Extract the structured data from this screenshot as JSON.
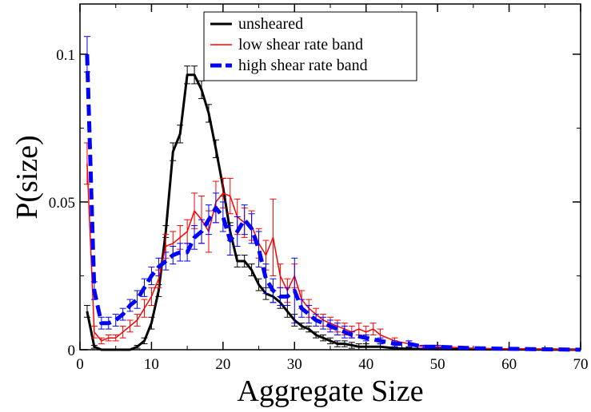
{
  "chart_data": {
    "type": "line",
    "title": "",
    "xlabel": "Aggregate Size",
    "ylabel": "P(size)",
    "xlim": [
      0,
      70
    ],
    "ylim": [
      0,
      0.117
    ],
    "x_ticks": [
      0,
      10,
      20,
      30,
      40,
      50,
      60,
      70
    ],
    "x_tick_labels": [
      "0",
      "10",
      "20",
      "30",
      "40",
      "50",
      "60",
      "70"
    ],
    "y_ticks": [
      0,
      0.05,
      0.1
    ],
    "y_tick_labels": [
      "0",
      "0.05",
      "0.1"
    ],
    "grid": false,
    "legend_position": "top-center",
    "series": [
      {
        "name": "unsheared",
        "color": "#000000",
        "style": "solid",
        "points": [
          [
            1,
            0.013
          ],
          [
            2,
            0.001
          ],
          [
            3,
            0
          ],
          [
            4,
            0
          ],
          [
            5,
            0
          ],
          [
            6,
            0
          ],
          [
            7,
            0
          ],
          [
            8,
            0.001
          ],
          [
            9,
            0.003
          ],
          [
            10,
            0.009
          ],
          [
            11,
            0.02
          ],
          [
            12,
            0.04
          ],
          [
            13,
            0.067
          ],
          [
            14,
            0.073
          ],
          [
            15,
            0.093
          ],
          [
            16,
            0.093
          ],
          [
            17,
            0.088
          ],
          [
            18,
            0.08
          ],
          [
            19,
            0.068
          ],
          [
            20,
            0.055
          ],
          [
            21,
            0.04
          ],
          [
            22,
            0.03
          ],
          [
            23,
            0.03
          ],
          [
            24,
            0.027
          ],
          [
            25,
            0.022
          ],
          [
            26,
            0.019
          ],
          [
            27,
            0.018
          ],
          [
            28,
            0.016
          ],
          [
            29,
            0.013
          ],
          [
            30,
            0.01
          ],
          [
            31,
            0.008
          ],
          [
            32,
            0.007
          ],
          [
            33,
            0.005
          ],
          [
            34,
            0.004
          ],
          [
            35,
            0.003
          ],
          [
            36,
            0.002
          ],
          [
            37,
            0.002
          ],
          [
            38,
            0.0015
          ],
          [
            39,
            0.001
          ],
          [
            40,
            0.001
          ],
          [
            42,
            0.001
          ],
          [
            44,
            0.0005
          ],
          [
            46,
            0.0003
          ],
          [
            50,
            0.0002
          ],
          [
            55,
            0.0001
          ],
          [
            60,
            0.0001
          ],
          [
            70,
            0
          ]
        ],
        "errors": [
          0.002,
          0.0005,
          0,
          0,
          0,
          0,
          0,
          0.0005,
          0.001,
          0.002,
          0.002,
          0.002,
          0.003,
          0.003,
          0.003,
          0.003,
          0.003,
          0.003,
          0.003,
          0.003,
          0.003,
          0.002,
          0.002,
          0.002,
          0.002,
          0.002,
          0.002,
          0.002,
          0.002,
          0.002,
          0.001,
          0.001,
          0.001,
          0.001,
          0.001,
          0.001,
          0.001,
          0.001,
          0.001,
          0.001,
          0.001,
          0.0005,
          0.0005,
          0.0005,
          0,
          0,
          0
        ]
      },
      {
        "name": "low shear rate band",
        "color": "#ff0000",
        "style": "solid",
        "points": [
          [
            1,
            0.063
          ],
          [
            2,
            0.006
          ],
          [
            3,
            0.003
          ],
          [
            4,
            0.004
          ],
          [
            5,
            0.004
          ],
          [
            6,
            0.006
          ],
          [
            7,
            0.008
          ],
          [
            8,
            0.01
          ],
          [
            9,
            0.014
          ],
          [
            10,
            0.018
          ],
          [
            11,
            0.024
          ],
          [
            12,
            0.035
          ],
          [
            13,
            0.036
          ],
          [
            14,
            0.038
          ],
          [
            15,
            0.04
          ],
          [
            16,
            0.047
          ],
          [
            17,
            0.044
          ],
          [
            18,
            0.04
          ],
          [
            19,
            0.05
          ],
          [
            20,
            0.053
          ],
          [
            21,
            0.052
          ],
          [
            22,
            0.045
          ],
          [
            23,
            0.043
          ],
          [
            24,
            0.042
          ],
          [
            25,
            0.036
          ],
          [
            26,
            0.032
          ],
          [
            27,
            0.038
          ],
          [
            28,
            0.025
          ],
          [
            29,
            0.02
          ],
          [
            30,
            0.025
          ],
          [
            31,
            0.017
          ],
          [
            32,
            0.014
          ],
          [
            33,
            0.012
          ],
          [
            34,
            0.01
          ],
          [
            35,
            0.009
          ],
          [
            36,
            0.008
          ],
          [
            37,
            0.007
          ],
          [
            38,
            0.006
          ],
          [
            39,
            0.007
          ],
          [
            40,
            0.006
          ],
          [
            41,
            0.007
          ],
          [
            42,
            0.005
          ],
          [
            44,
            0.003
          ],
          [
            46,
            0.002
          ],
          [
            48,
            0.001
          ],
          [
            50,
            0.001
          ],
          [
            55,
            0.0005
          ],
          [
            60,
            0.0003
          ],
          [
            70,
            0
          ]
        ],
        "errors": [
          0.007,
          0.002,
          0.001,
          0.001,
          0.001,
          0.002,
          0.002,
          0.002,
          0.003,
          0.003,
          0.003,
          0.004,
          0.004,
          0.004,
          0.004,
          0.006,
          0.008,
          0.007,
          0.007,
          0.005,
          0.006,
          0.006,
          0.005,
          0.005,
          0.005,
          0.005,
          0.013,
          0.004,
          0.004,
          0.004,
          0.003,
          0.003,
          0.002,
          0.002,
          0.002,
          0.002,
          0.002,
          0.002,
          0.002,
          0.002,
          0.002,
          0.002,
          0.001,
          0.001,
          0.0005,
          0.0005,
          0,
          0,
          0
        ]
      },
      {
        "name": "high shear rate band",
        "color": "#0000ff",
        "style": "dashed",
        "points": [
          [
            1,
            0.1
          ],
          [
            2,
            0.02
          ],
          [
            3,
            0.009
          ],
          [
            4,
            0.009
          ],
          [
            5,
            0.01
          ],
          [
            6,
            0.012
          ],
          [
            7,
            0.015
          ],
          [
            8,
            0.017
          ],
          [
            9,
            0.021
          ],
          [
            10,
            0.025
          ],
          [
            11,
            0.028
          ],
          [
            12,
            0.03
          ],
          [
            13,
            0.032
          ],
          [
            14,
            0.033
          ],
          [
            15,
            0.033
          ],
          [
            16,
            0.038
          ],
          [
            17,
            0.04
          ],
          [
            18,
            0.044
          ],
          [
            19,
            0.048
          ],
          [
            20,
            0.045
          ],
          [
            21,
            0.037
          ],
          [
            22,
            0.04
          ],
          [
            23,
            0.044
          ],
          [
            24,
            0.041
          ],
          [
            25,
            0.034
          ],
          [
            26,
            0.024
          ],
          [
            27,
            0.02
          ],
          [
            28,
            0.018
          ],
          [
            29,
            0.018
          ],
          [
            30,
            0.02
          ],
          [
            31,
            0.014
          ],
          [
            32,
            0.012
          ],
          [
            33,
            0.01
          ],
          [
            34,
            0.009
          ],
          [
            35,
            0.008
          ],
          [
            36,
            0.007
          ],
          [
            37,
            0.006
          ],
          [
            38,
            0.005
          ],
          [
            40,
            0.004
          ],
          [
            42,
            0.003
          ],
          [
            44,
            0.002
          ],
          [
            46,
            0.002
          ],
          [
            48,
            0.001
          ],
          [
            50,
            0.001
          ],
          [
            55,
            0.0005
          ],
          [
            60,
            0.0003
          ],
          [
            70,
            0
          ]
        ],
        "errors": [
          0.006,
          0.003,
          0.002,
          0.002,
          0.002,
          0.002,
          0.002,
          0.003,
          0.003,
          0.003,
          0.003,
          0.003,
          0.003,
          0.003,
          0.003,
          0.004,
          0.004,
          0.005,
          0.005,
          0.005,
          0.005,
          0.005,
          0.005,
          0.005,
          0.006,
          0.005,
          0.004,
          0.003,
          0.003,
          0.011,
          0.003,
          0.003,
          0.002,
          0.002,
          0.002,
          0.002,
          0.002,
          0.001,
          0.001,
          0.001,
          0.001,
          0.001,
          0.0005,
          0.0005,
          0,
          0,
          0
        ]
      }
    ]
  }
}
